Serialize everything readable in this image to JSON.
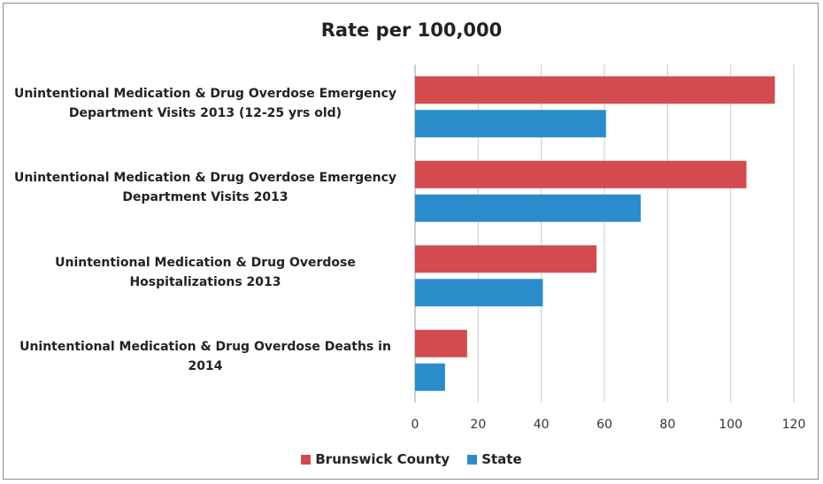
{
  "chart_data": {
    "type": "bar",
    "orientation": "horizontal",
    "title": "Rate per 100,000",
    "xlim": [
      0,
      120
    ],
    "xticks": [
      0,
      20,
      40,
      60,
      80,
      100,
      120
    ],
    "grid": "vertical",
    "legend_position": "bottom",
    "categories": [
      "Unintentional Medication & Drug Overdose Emergency Department Visits 2013 (12-25 yrs old)",
      "Unintentional Medication & Drug Overdose Emergency Department Visits 2013",
      "Unintentional Medication & Drug Overdose Hospitalizations 2013",
      "Unintentional Medication & Drug Overdose Deaths in 2014"
    ],
    "category_lines": [
      [
        "Unintentional Medication & Drug Overdose Emergency",
        "Department Visits 2013 (12-25 yrs old)"
      ],
      [
        "Unintentional Medication & Drug Overdose Emergency",
        "Department Visits 2013"
      ],
      [
        "Unintentional Medication & Drug Overdose",
        "Hospitalizations 2013"
      ],
      [
        "Unintentional Medication & Drug Overdose Deaths in",
        "2014"
      ]
    ],
    "series": [
      {
        "name": "Brunswick County",
        "color": "#d34b4f",
        "values": [
          114,
          105,
          57.5,
          16.5
        ]
      },
      {
        "name": "State",
        "color": "#2b8ccb",
        "values": [
          60.5,
          71.5,
          40.5,
          9.5
        ]
      }
    ]
  }
}
